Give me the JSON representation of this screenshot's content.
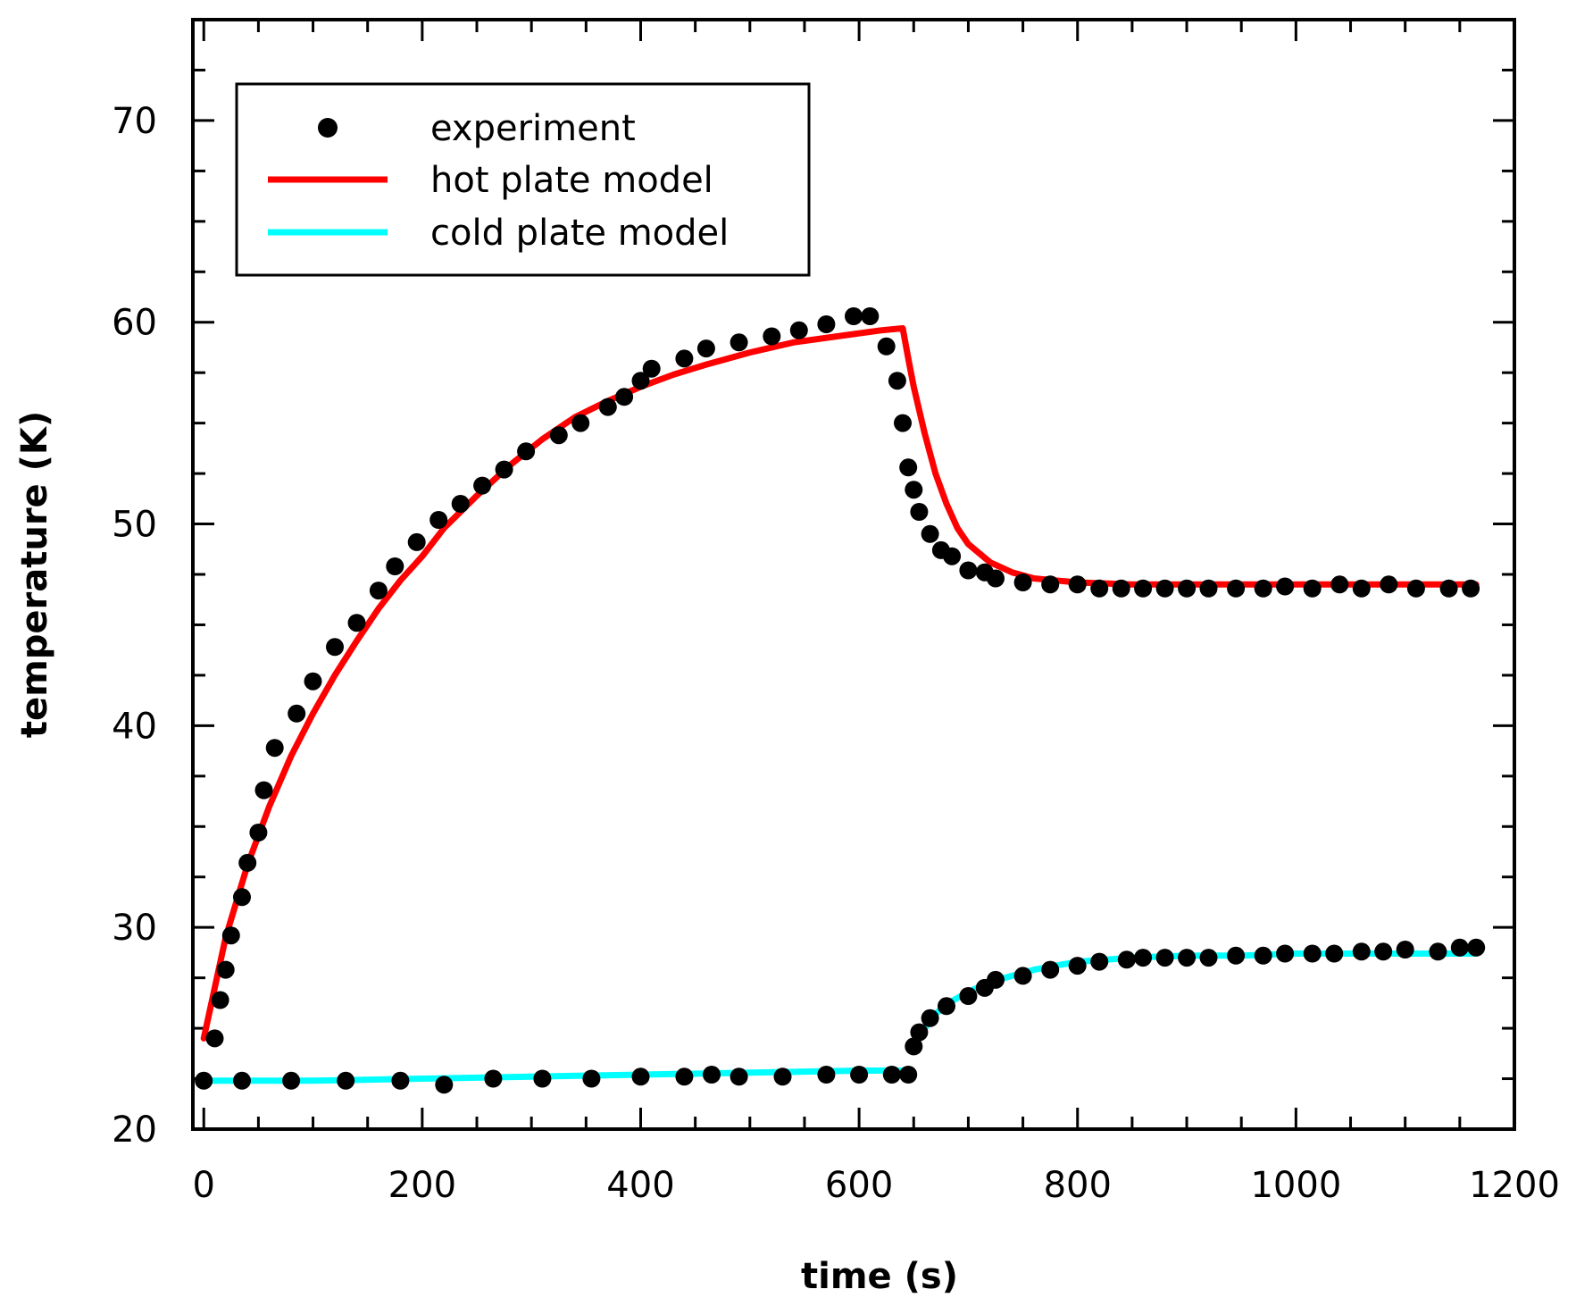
{
  "chart_data": {
    "type": "line",
    "title": "",
    "xlabel": "time (s)",
    "ylabel": "temperature (K)",
    "xlim": [
      -10,
      1200
    ],
    "ylim": [
      20,
      75
    ],
    "xticks": [
      0,
      200,
      400,
      600,
      800,
      1000,
      1200
    ],
    "yticks": [
      20,
      30,
      40,
      50,
      60,
      70
    ],
    "legend": {
      "position": "top-left",
      "entries": [
        "experiment",
        "hot plate model",
        "cold plate model"
      ]
    },
    "colors": {
      "experiment": "#000000",
      "hot": "#ff0000",
      "cold": "#00ffff"
    },
    "series": [
      {
        "name": "experiment (hot plate)",
        "kind": "scatter",
        "x": [
          10,
          15,
          20,
          25,
          35,
          40,
          50,
          55,
          65,
          85,
          100,
          120,
          140,
          160,
          175,
          195,
          215,
          235,
          255,
          275,
          295,
          325,
          345,
          370,
          385,
          400,
          410,
          440,
          460,
          490,
          520,
          545,
          570,
          595,
          610,
          625,
          635,
          640,
          645,
          650,
          655,
          665,
          675,
          685,
          700,
          715,
          725,
          750,
          775,
          800,
          820,
          840,
          860,
          880,
          900,
          920,
          945,
          970,
          990,
          1015,
          1040,
          1060,
          1085,
          1110,
          1140,
          1160
        ],
        "y": [
          24.5,
          26.4,
          27.9,
          29.6,
          31.5,
          33.2,
          34.7,
          36.8,
          38.9,
          40.6,
          42.2,
          43.9,
          45.1,
          46.7,
          47.9,
          49.1,
          50.2,
          51.0,
          51.9,
          52.7,
          53.6,
          54.4,
          55.0,
          55.8,
          56.3,
          57.1,
          57.7,
          58.2,
          58.7,
          59.0,
          59.3,
          59.6,
          59.9,
          60.3,
          60.3,
          58.8,
          57.1,
          55.0,
          52.8,
          51.7,
          50.6,
          49.5,
          48.7,
          48.4,
          47.7,
          47.6,
          47.3,
          47.1,
          47.0,
          47.0,
          46.8,
          46.8,
          46.8,
          46.8,
          46.8,
          46.8,
          46.8,
          46.8,
          46.9,
          46.8,
          47.0,
          46.8,
          47.0,
          46.8,
          46.8,
          46.8
        ]
      },
      {
        "name": "experiment (cold plate)",
        "kind": "scatter",
        "x": [
          0,
          35,
          80,
          130,
          180,
          220,
          265,
          310,
          355,
          400,
          440,
          465,
          490,
          530,
          570,
          600,
          630,
          645,
          650,
          655,
          665,
          680,
          700,
          715,
          725,
          750,
          775,
          800,
          820,
          845,
          860,
          880,
          900,
          920,
          945,
          970,
          990,
          1015,
          1035,
          1060,
          1080,
          1100,
          1130,
          1150,
          1165
        ],
        "y": [
          22.4,
          22.4,
          22.4,
          22.4,
          22.4,
          22.2,
          22.5,
          22.5,
          22.5,
          22.6,
          22.6,
          22.7,
          22.6,
          22.6,
          22.7,
          22.7,
          22.7,
          22.7,
          24.1,
          24.8,
          25.5,
          26.1,
          26.6,
          27.0,
          27.4,
          27.6,
          27.9,
          28.1,
          28.3,
          28.4,
          28.5,
          28.5,
          28.5,
          28.5,
          28.6,
          28.6,
          28.7,
          28.7,
          28.7,
          28.8,
          28.8,
          28.9,
          28.8,
          29.0,
          29.0
        ]
      },
      {
        "name": "hot plate model",
        "kind": "line",
        "x": [
          0,
          20,
          40,
          60,
          80,
          100,
          120,
          140,
          160,
          180,
          200,
          220,
          250,
          280,
          310,
          340,
          370,
          400,
          430,
          460,
          500,
          540,
          580,
          620,
          640,
          645,
          650,
          660,
          670,
          680,
          690,
          700,
          720,
          740,
          760,
          780,
          800,
          850,
          900,
          1000,
          1100,
          1165
        ],
        "y": [
          24.5,
          29.5,
          33.1,
          36.0,
          38.5,
          40.6,
          42.5,
          44.2,
          45.8,
          47.2,
          48.4,
          49.8,
          51.4,
          52.9,
          54.2,
          55.3,
          56.1,
          56.8,
          57.4,
          57.9,
          58.5,
          59.0,
          59.3,
          59.6,
          59.7,
          58.2,
          56.8,
          54.5,
          52.5,
          51.0,
          49.8,
          49.0,
          48.1,
          47.6,
          47.3,
          47.2,
          47.1,
          47.0,
          47.0,
          47.0,
          47.0,
          47.0
        ]
      },
      {
        "name": "cold plate model",
        "kind": "line",
        "segments": [
          {
            "x": [
              0,
              100,
              200,
              300,
              400,
              500,
              600,
              640
            ],
            "y": [
              22.4,
              22.4,
              22.5,
              22.6,
              22.7,
              22.8,
              22.9,
              22.9
            ]
          },
          {
            "x": [
              650,
              660,
              670,
              680,
              700,
              720,
              740,
              760,
              780,
              800,
              850,
              900,
              950,
              1000,
              1100,
              1165
            ],
            "y": [
              24.0,
              25.0,
              25.7,
              26.2,
              26.8,
              27.3,
              27.6,
              27.9,
              28.1,
              28.3,
              28.5,
              28.6,
              28.6,
              28.7,
              28.7,
              28.7
            ]
          }
        ]
      }
    ]
  }
}
